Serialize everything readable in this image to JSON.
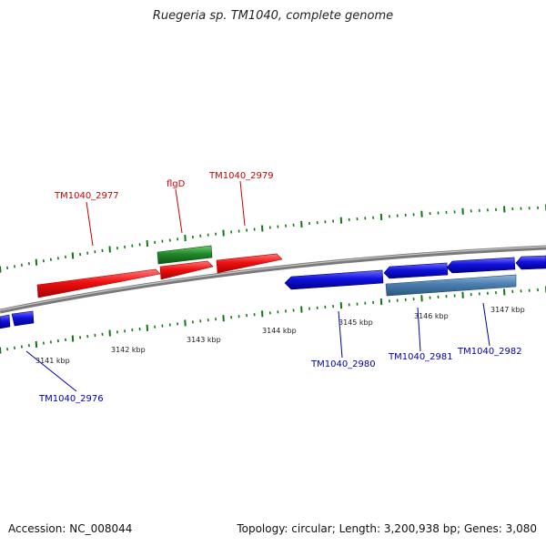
{
  "title": "Ruegeria sp. TM1040, complete genome",
  "footer": {
    "accession_label": "Accession:",
    "accession": "NC_008044",
    "topology_label": "Topology:",
    "topology": "circular",
    "length_label": "Length:",
    "length": "3,200,938 bp",
    "genes_label": "Genes:",
    "genes": "3,080"
  },
  "colors": {
    "forward_gene": "#ee1111",
    "reverse_gene": "#1111dd",
    "rna_forward": "#22882a",
    "rna_reverse": "#4a7fb0",
    "backbone": "#888888",
    "ticks": "#117711",
    "forward_label": "#cc0000",
    "reverse_label": "#0000aa"
  },
  "ruler": {
    "unit": "kbp",
    "labels": [
      "3141 kbp",
      "3142 kbp",
      "3143 kbp",
      "3144 kbp",
      "3145 kbp",
      "3146 kbp",
      "3147 kbp"
    ]
  },
  "gene_labels": [
    {
      "text": "TM1040_2977",
      "strand": "forward"
    },
    {
      "text": "flgD",
      "strand": "forward"
    },
    {
      "text": "TM1040_2979",
      "strand": "forward"
    },
    {
      "text": "TM1040_2976",
      "strand": "reverse"
    },
    {
      "text": "TM1040_2980",
      "strand": "reverse"
    },
    {
      "text": "TM1040_2981",
      "strand": "reverse"
    },
    {
      "text": "TM1040_2982",
      "strand": "reverse"
    }
  ]
}
